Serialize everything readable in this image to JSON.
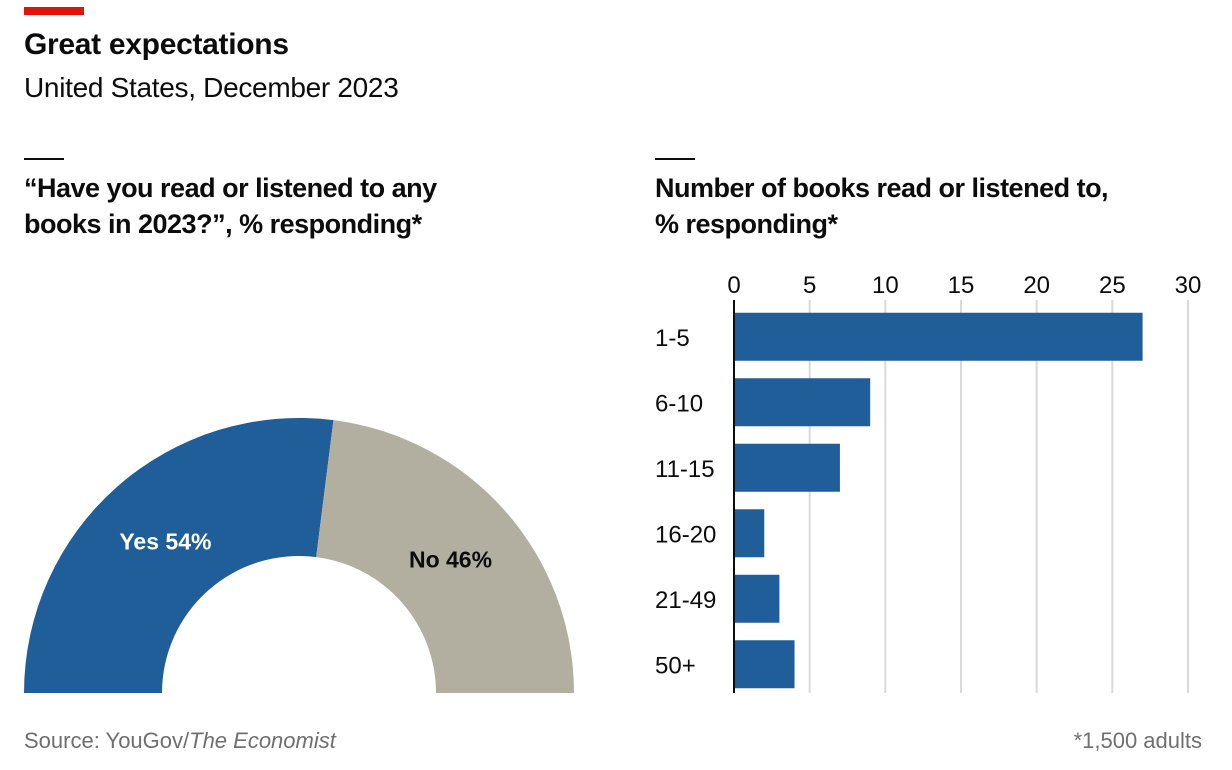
{
  "header": {
    "title": "Great expectations",
    "subtitle": "United States, December 2023"
  },
  "left_panel": {
    "heading_lines": [
      "“Have you read or listened to any",
      "books in 2023?”, % responding*"
    ]
  },
  "right_panel": {
    "heading_lines": [
      "Number of books read or listened to,",
      "% responding*"
    ]
  },
  "footer": {
    "source_prefix": "Source: YouGov/",
    "source_italic": "The Economist",
    "note": "*1,500 adults"
  },
  "colors": {
    "accent": "#e3120b",
    "blue": "#205e9a",
    "gray": "#b2afa0",
    "gridline": "#d9d9d9"
  },
  "chart_data": [
    {
      "type": "pie",
      "variant": "semicircle-donut",
      "categories": [
        "Yes",
        "No"
      ],
      "values": [
        54,
        46
      ],
      "labels": [
        "Yes 54%",
        "No 46%"
      ],
      "colors": [
        "#205e9a",
        "#b2afa0"
      ]
    },
    {
      "type": "bar",
      "orientation": "horizontal",
      "categories": [
        "1-5",
        "6-10",
        "11-15",
        "16-20",
        "21-49",
        "50+"
      ],
      "values": [
        27,
        9,
        7,
        2,
        3,
        4
      ],
      "xlim": [
        0,
        30
      ],
      "xticks": [
        0,
        5,
        10,
        15,
        20,
        25,
        30
      ],
      "tick_position": "top",
      "grid": true,
      "color": "#205e9a"
    }
  ]
}
